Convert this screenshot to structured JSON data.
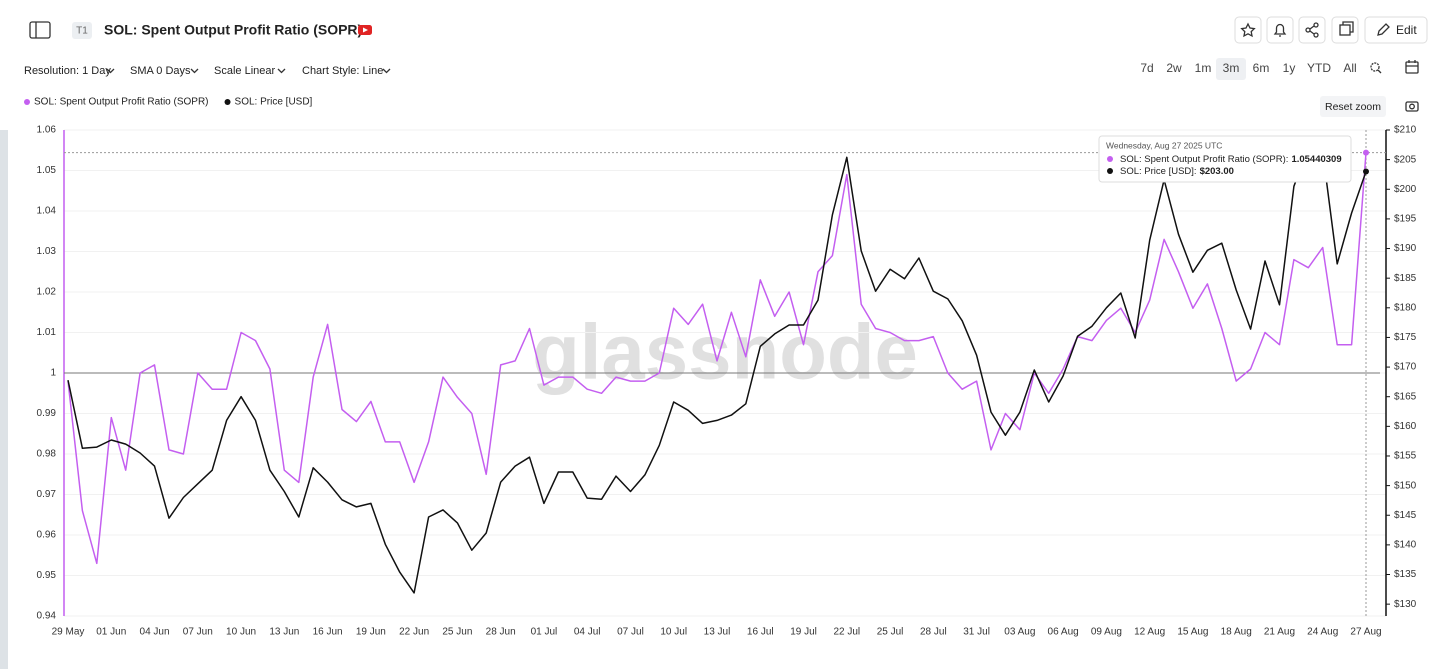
{
  "header": {
    "badge": "T1",
    "title": "SOL: Spent Output Profit Ratio (SOPR)",
    "edit": "Edit"
  },
  "controls": {
    "resolution": "Resolution: 1 Day",
    "sma": "SMA 0 Days",
    "scale": "Scale Linear",
    "style": "Chart Style: Line",
    "ranges": [
      "7d",
      "2w",
      "1m",
      "3m",
      "6m",
      "1y",
      "YTD",
      "All"
    ],
    "active_range": "3m",
    "reset_zoom": "Reset zoom"
  },
  "watermark": "glassnode",
  "chart_data": {
    "type": "line",
    "categories": [
      "29 May",
      null,
      null,
      "01 Jun",
      null,
      null,
      "04 Jun",
      null,
      null,
      "07 Jun",
      null,
      null,
      "10 Jun",
      null,
      null,
      "13 Jun",
      null,
      null,
      "16 Jun",
      null,
      null,
      "19 Jun",
      null,
      null,
      "22 Jun",
      null,
      null,
      "25 Jun",
      null,
      null,
      "28 Jun",
      null,
      null,
      "01 Jul",
      null,
      null,
      "04 Jul",
      null,
      null,
      "07 Jul",
      null,
      null,
      "10 Jul",
      null,
      null,
      "13 Jul",
      null,
      null,
      "16 Jul",
      null,
      null,
      "19 Jul",
      null,
      null,
      "22 Jul",
      null,
      null,
      "25 Jul",
      null,
      null,
      "28 Jul",
      null,
      null,
      "31 Jul",
      null,
      null,
      "03 Aug",
      null,
      null,
      "06 Aug",
      null,
      null,
      "09 Aug",
      null,
      null,
      "12 Aug",
      null,
      null,
      "15 Aug",
      null,
      null,
      "18 Aug",
      null,
      null,
      "21 Aug",
      null,
      null,
      "24 Aug",
      null,
      null,
      "27 Aug"
    ],
    "series": [
      {
        "name": "SOL: Spent Output Profit Ratio (SOPR)",
        "color": "#c45ff0",
        "axis": "y",
        "values": [
          0.998,
          0.966,
          0.953,
          0.989,
          0.976,
          1.0,
          1.002,
          0.981,
          0.98,
          1.0,
          0.996,
          0.996,
          1.01,
          1.008,
          1.001,
          0.976,
          0.973,
          0.999,
          1.012,
          0.991,
          0.988,
          0.993,
          0.983,
          0.983,
          0.973,
          0.983,
          0.999,
          0.994,
          0.99,
          0.975,
          1.002,
          1.003,
          1.011,
          0.997,
          0.999,
          0.999,
          0.996,
          0.995,
          0.999,
          0.998,
          0.998,
          1.0,
          1.016,
          1.012,
          1.017,
          1.003,
          1.015,
          1.004,
          1.023,
          1.014,
          1.02,
          1.007,
          1.025,
          1.029,
          1.049,
          1.017,
          1.011,
          1.01,
          1.008,
          1.008,
          1.009,
          1.0,
          0.996,
          0.998,
          0.981,
          0.99,
          0.986,
          1.0,
          0.995,
          1.001,
          1.009,
          1.008,
          1.013,
          1.016,
          1.01,
          1.018,
          1.033,
          1.025,
          1.016,
          1.022,
          1.011,
          0.998,
          1.001,
          1.01,
          1.007,
          1.028,
          1.026,
          1.031,
          1.007,
          1.007,
          1.05440309
        ]
      },
      {
        "name": "SOL: Price [USD]",
        "color": "#111111",
        "axis": "y2",
        "values": [
          167.8,
          156.3,
          156.5,
          157.7,
          157,
          155.5,
          153.3,
          144.5,
          148,
          150.3,
          152.6,
          161,
          165,
          161,
          152.6,
          149,
          144.7,
          153,
          150.6,
          147.6,
          146.4,
          147,
          140.1,
          135.4,
          131.9,
          144.7,
          145.9,
          143.7,
          139.1,
          142,
          150.6,
          153.3,
          154.8,
          147,
          152.3,
          152.3,
          147.9,
          147.7,
          151.6,
          149,
          151.8,
          156.8,
          164.1,
          162.7,
          160.5,
          161,
          161.9,
          163.8,
          173.5,
          175.6,
          177.1,
          177.1,
          181.3,
          195.7,
          205.4,
          189.6,
          182.8,
          186.5,
          184.9,
          188.4,
          182.8,
          181.5,
          177.8,
          172,
          162.4,
          158.5,
          162.4,
          169.5,
          164.1,
          168.5,
          175.2,
          176.9,
          180,
          182.5,
          174.9,
          191.4,
          201.6,
          192.4,
          186,
          189.7,
          190.9,
          183,
          176.4,
          187.9,
          180.5,
          200.5,
          207,
          206.3,
          187.4,
          196,
          203
        ]
      }
    ],
    "ylim": [
      0.94,
      1.06
    ],
    "yticks": [
      0.94,
      0.95,
      0.96,
      0.97,
      0.98,
      0.99,
      1,
      1.01,
      1.02,
      1.03,
      1.04,
      1.05,
      1.06
    ],
    "y2lim": [
      128,
      210
    ],
    "y2ticks": [
      {
        "value": 130,
        "label": "$130"
      },
      {
        "value": 135,
        "label": "$135"
      },
      {
        "value": 140,
        "label": "$140"
      },
      {
        "value": 145,
        "label": "$145"
      },
      {
        "value": 150,
        "label": "$150"
      },
      {
        "value": 155,
        "label": "$155"
      },
      {
        "value": 160,
        "label": "$160"
      },
      {
        "value": 165,
        "label": "$165"
      },
      {
        "value": 170,
        "label": "$170"
      },
      {
        "value": 175,
        "label": "$175"
      },
      {
        "value": 180,
        "label": "$180"
      },
      {
        "value": 185,
        "label": "$185"
      },
      {
        "value": 190,
        "label": "$190"
      },
      {
        "value": 195,
        "label": "$195"
      },
      {
        "value": 200,
        "label": "$200"
      },
      {
        "value": 205,
        "label": "$205"
      },
      {
        "value": 210,
        "label": "$210"
      }
    ],
    "reference_line": 1,
    "legend": "top-left",
    "grid": true,
    "tooltip": {
      "date": "Wednesday, Aug 27 2025 UTC",
      "items": [
        {
          "name": "SOL: Spent Output Profit Ratio (SOPR):",
          "value": 1.05440309
        },
        {
          "name": "SOL: Price [USD]:",
          "value": {
            "value": 203,
            "label": "$203.00"
          }
        }
      ]
    }
  }
}
